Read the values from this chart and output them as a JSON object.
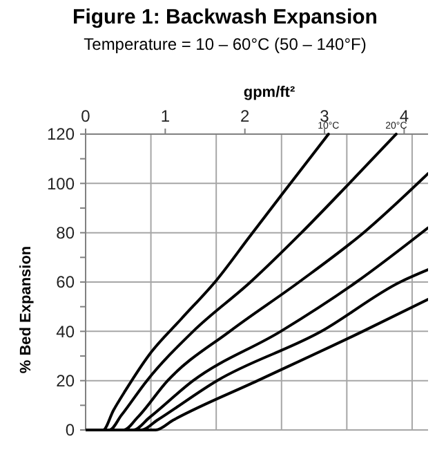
{
  "chart_data": {
    "type": "line",
    "title": "Figure 1: Backwash Expansion",
    "subtitle": "Temperature = 10 – 60°C (50 – 140°F)",
    "xlabel": "gpm/ft²",
    "ylabel": "% Bed Expansion",
    "xlim": [
      0,
      4.3
    ],
    "xticks": [
      0,
      1,
      2,
      3,
      4
    ],
    "ylim": [
      0,
      120
    ],
    "yticks": [
      0,
      {
        "value": 10,
        "label": null
      },
      20,
      {
        "value": 30,
        "label": null
      },
      40,
      {
        "value": 50,
        "label": null
      },
      60,
      {
        "value": 70,
        "label": null
      },
      80,
      {
        "value": 90,
        "label": null
      },
      100,
      {
        "value": 110,
        "label": null
      },
      120
    ],
    "grid": "y",
    "marker": "none",
    "line_style": "solid",
    "ref_lines": [
      {
        "axis": "x",
        "value": 0.82,
        "color": "#a6a6a6"
      },
      {
        "axis": "x",
        "value": 1.64,
        "color": "#a6a6a6"
      },
      {
        "axis": "x",
        "value": 2.46,
        "color": "#a6a6a6"
      },
      {
        "axis": "x",
        "value": 3.28,
        "color": "#a6a6a6"
      },
      {
        "axis": "x",
        "value": 4.1,
        "color": "#a6a6a6"
      }
    ],
    "series": [
      {
        "name": "10°C",
        "color": "#000000",
        "x": [
          0,
          0.22,
          0.35,
          0.5,
          0.81,
          1.2,
          1.65,
          2.05,
          2.5,
          3.05
        ],
        "values": [
          0,
          0,
          8,
          16,
          31,
          45,
          61,
          78,
          97,
          120
        ]
      },
      {
        "name": "20°C",
        "color": "#000000",
        "x": [
          0,
          0.3,
          0.45,
          0.77,
          1.35,
          2.07,
          2.71,
          3.31,
          3.9
        ],
        "values": [
          0,
          0,
          6,
          20,
          40,
          60,
          80,
          100,
          120
        ]
      },
      {
        "color": "#000000",
        "x": [
          0,
          0.48,
          0.65,
          1.03,
          1.81,
          2.68,
          3.49,
          4.3
        ],
        "values": [
          0,
          0,
          5,
          20,
          40,
          60,
          80,
          104
        ]
      },
      {
        "color": "#000000",
        "x": [
          0,
          0.6,
          0.8,
          1.35,
          2.45,
          3.4,
          4.3
        ],
        "values": [
          0,
          0,
          5,
          20,
          40,
          60,
          82
        ]
      },
      {
        "color": "#000000",
        "x": [
          0,
          0.7,
          0.9,
          1.65,
          2.96,
          3.95,
          4.3
        ],
        "values": [
          0,
          0,
          4,
          20,
          40,
          60,
          65
        ]
      },
      {
        "color": "#000000",
        "x": [
          0,
          0.88,
          1.1,
          2.16,
          3.48,
          4.3
        ],
        "values": [
          0,
          0,
          4,
          20,
          40,
          53
        ]
      }
    ]
  }
}
